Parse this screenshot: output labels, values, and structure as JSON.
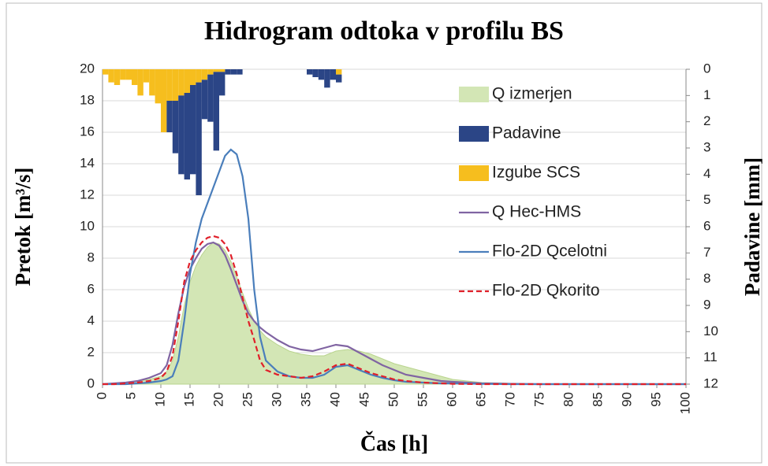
{
  "chart_data": {
    "type": "combo",
    "title": "Hidrogram odtoka v profilu BS",
    "x_label": "Čas [h]",
    "y_label": "Pretok [m³/s]",
    "y2_label": "Padavine [mm]",
    "x": [
      0,
      2,
      4,
      6,
      8,
      10,
      11,
      12,
      13,
      14,
      15,
      16,
      17,
      18,
      19,
      20,
      21,
      22,
      23,
      24,
      25,
      26,
      27,
      28,
      30,
      32,
      34,
      36,
      38,
      40,
      42,
      44,
      46,
      48,
      50,
      52,
      55,
      58,
      60,
      65,
      70,
      75,
      80,
      90,
      100
    ],
    "xlim": [
      0,
      100
    ],
    "xticks": [
      0,
      5,
      10,
      15,
      20,
      25,
      30,
      35,
      40,
      45,
      50,
      55,
      60,
      65,
      70,
      75,
      80,
      85,
      90,
      95,
      100
    ],
    "ylim": [
      0,
      20
    ],
    "yticks": [
      0,
      2,
      4,
      6,
      8,
      10,
      12,
      14,
      16,
      18,
      20
    ],
    "y2lim": [
      0,
      12
    ],
    "y2ticks": [
      0,
      1,
      2,
      3,
      4,
      5,
      6,
      7,
      8,
      9,
      10,
      11,
      12
    ],
    "grid": true,
    "legend": "right",
    "series": [
      {
        "name": "Q izmerjen",
        "type": "area",
        "color": "#d3e6b5",
        "values": [
          0,
          0,
          0.1,
          0.2,
          0.3,
          0.5,
          0.8,
          1.5,
          3,
          5,
          6.5,
          7.5,
          8.2,
          8.7,
          9,
          8.9,
          8.5,
          7.8,
          6.8,
          5.8,
          4.8,
          4,
          3.4,
          3,
          2.5,
          2.1,
          1.9,
          1.8,
          1.8,
          2.1,
          2.2,
          2.1,
          1.9,
          1.6,
          1.3,
          1.1,
          0.8,
          0.5,
          0.3,
          0.1,
          0.05,
          0,
          0,
          0,
          0
        ]
      },
      {
        "name": "Padavine",
        "type": "bar",
        "axis": "y2",
        "color": "#2b4586",
        "x": [
          0,
          1,
          2,
          3,
          4,
          5,
          6,
          7,
          8,
          9,
          10,
          11,
          12,
          13,
          14,
          15,
          16,
          17,
          18,
          19,
          20,
          21,
          22,
          23,
          24,
          25,
          26,
          27,
          28,
          29,
          30,
          31,
          32,
          33,
          34,
          35,
          36,
          37,
          38,
          39,
          40,
          41
        ],
        "values": [
          0,
          0,
          0,
          0,
          0,
          0,
          0,
          0,
          0,
          0,
          0,
          1.2,
          2.0,
          3.0,
          3.3,
          3.4,
          4.3,
          1.5,
          1.8,
          3.0,
          0.9,
          0.2,
          0.2,
          0.2,
          0,
          0,
          0,
          0,
          0,
          0,
          0,
          0,
          0,
          0,
          0,
          0.2,
          0.3,
          0.4,
          0.7,
          0.4,
          0.3,
          0
        ]
      },
      {
        "name": "Izgube SCS",
        "type": "bar",
        "axis": "y2",
        "color": "#f6be1e",
        "x": [
          0,
          1,
          2,
          3,
          4,
          5,
          6,
          7,
          8,
          9,
          10,
          11,
          12,
          13,
          14,
          15,
          16,
          17,
          18,
          19,
          20,
          21,
          22,
          23,
          24,
          25,
          26,
          27,
          28,
          29,
          30,
          31,
          32,
          33,
          34,
          35,
          36,
          37,
          38,
          39,
          40,
          41
        ],
        "values": [
          0.2,
          0.5,
          0.6,
          0.4,
          0.4,
          0.6,
          1.0,
          0.5,
          1.0,
          1.3,
          2.4,
          1.2,
          1.2,
          1.0,
          0.9,
          0.6,
          0.5,
          0.4,
          0.2,
          0.1,
          0.1,
          0,
          0,
          0,
          0,
          0,
          0,
          0,
          0,
          0,
          0,
          0,
          0,
          0,
          0,
          0,
          0,
          0,
          0,
          0,
          0.2,
          0
        ]
      },
      {
        "name": "Q Hec-HMS",
        "type": "line",
        "color": "#8064a2",
        "values": [
          0,
          0.05,
          0.1,
          0.2,
          0.4,
          0.7,
          1.2,
          2.5,
          4.5,
          6.2,
          7.3,
          8,
          8.6,
          8.9,
          9,
          8.8,
          8.2,
          7.3,
          6.3,
          5.3,
          4.5,
          4,
          3.6,
          3.3,
          2.8,
          2.4,
          2.2,
          2.1,
          2.3,
          2.5,
          2.4,
          2,
          1.6,
          1.2,
          0.9,
          0.6,
          0.4,
          0.2,
          0.15,
          0.05,
          0.02,
          0,
          0,
          0,
          0
        ]
      },
      {
        "name": "Flo-2D Qcelotni",
        "type": "line",
        "color": "#4a7ebb",
        "values": [
          0,
          0,
          0,
          0.05,
          0.1,
          0.2,
          0.3,
          0.5,
          1.5,
          4,
          7,
          9,
          10.5,
          11.5,
          12.5,
          13.5,
          14.5,
          14.9,
          14.6,
          13.2,
          10.5,
          6,
          3,
          1.5,
          0.8,
          0.5,
          0.4,
          0.4,
          0.6,
          1.1,
          1.2,
          0.9,
          0.6,
          0.4,
          0.25,
          0.15,
          0.1,
          0.05,
          0.05,
          0.02,
          0,
          0,
          0,
          0,
          0
        ]
      },
      {
        "name": "Flo-2D Qkorito",
        "type": "line",
        "dashed": true,
        "color": "#e0202a",
        "values": [
          0,
          0,
          0.05,
          0.1,
          0.2,
          0.4,
          0.8,
          1.8,
          4,
          6.5,
          7.8,
          8.5,
          9,
          9.3,
          9.4,
          9.3,
          8.9,
          8.2,
          7,
          5.5,
          4,
          2.8,
          1.5,
          0.9,
          0.6,
          0.5,
          0.4,
          0.5,
          0.8,
          1.2,
          1.3,
          1.0,
          0.7,
          0.5,
          0.3,
          0.2,
          0.1,
          0.05,
          0.02,
          0,
          0,
          0,
          0,
          0,
          0
        ]
      }
    ]
  }
}
